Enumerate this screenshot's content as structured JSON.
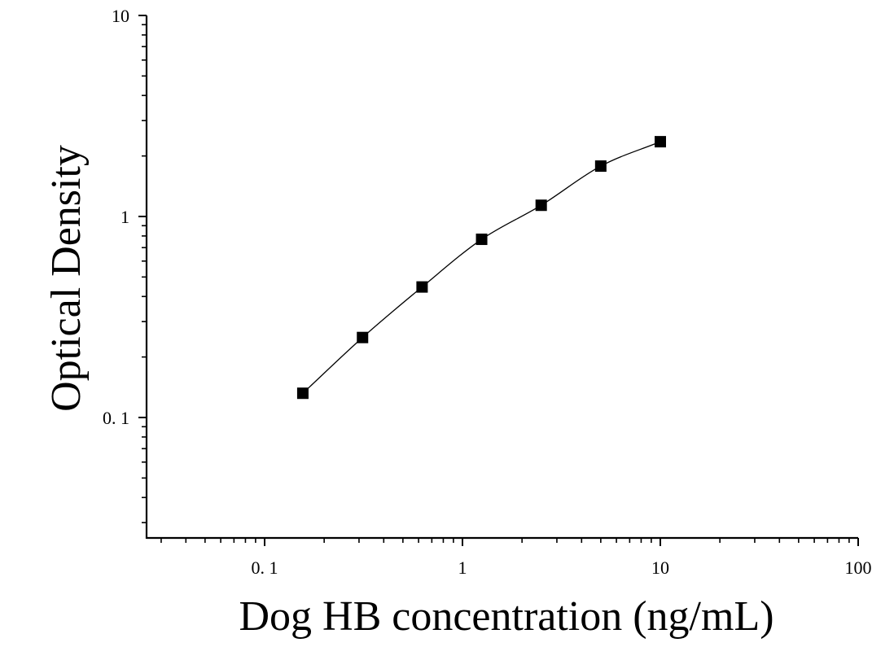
{
  "chart_data": {
    "type": "scatter",
    "title": "",
    "xlabel": "Dog HB concentration (ng/mL)",
    "ylabel": "Optical Density",
    "x_scale": "log",
    "y_scale": "log",
    "xlim": [
      0.03,
      100
    ],
    "ylim": [
      0.03,
      10
    ],
    "x_tick_values": [
      0.1,
      1,
      10,
      100
    ],
    "x_tick_labels": [
      "0. 1",
      "1",
      "10",
      "100"
    ],
    "y_tick_values": [
      0.1,
      1,
      10
    ],
    "y_tick_labels": [
      "0. 1",
      "1",
      "10"
    ],
    "grid": false,
    "legend": "none",
    "series": [
      {
        "marker": "square",
        "fit_curve": true,
        "x": [
          0.156,
          0.3125,
          0.625,
          1.25,
          2.5,
          5,
          10
        ],
        "y": [
          0.132,
          0.25,
          0.446,
          0.77,
          1.137,
          1.781,
          2.355
        ]
      }
    ],
    "colors": {
      "axis": "#000000",
      "marker": "#000000",
      "curve": "#000000"
    }
  }
}
